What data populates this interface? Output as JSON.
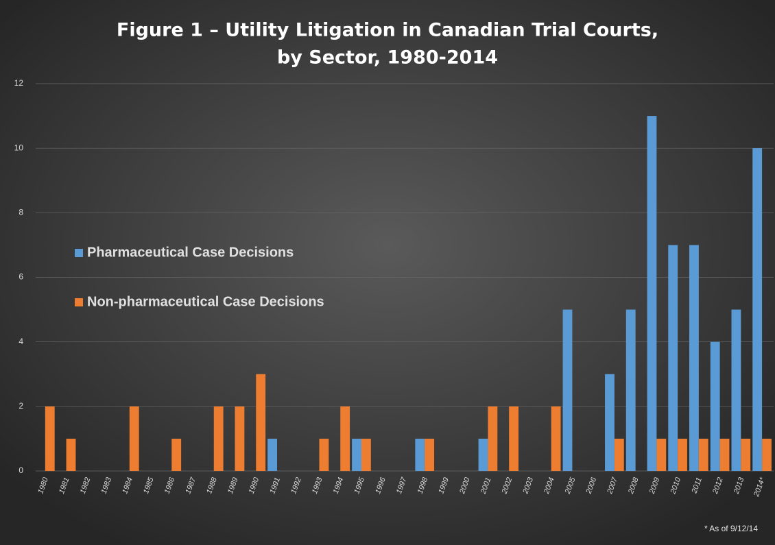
{
  "chart_data": {
    "type": "bar",
    "title": [
      "Figure 1 – Utility Litigation in Canadian Trial Courts,",
      "by Sector, 1980-2014"
    ],
    "categories": [
      "1980",
      "1981",
      "1982",
      "1983",
      "1984",
      "1985",
      "1986",
      "1987",
      "1988",
      "1989",
      "1990",
      "1991",
      "1992",
      "1993",
      "1994",
      "1995",
      "1996",
      "1997",
      "1998",
      "1999",
      "2000",
      "2001",
      "2002",
      "2003",
      "2004",
      "2005",
      "2006",
      "2007",
      "2008",
      "2009",
      "2010",
      "2011",
      "2012",
      "2013",
      "2014*"
    ],
    "series": [
      {
        "name": "Pharmaceutical Case Decisions",
        "color": "#5b9bd5",
        "values": [
          0,
          0,
          0,
          0,
          0,
          0,
          0,
          0,
          0,
          0,
          0,
          1,
          0,
          0,
          0,
          1,
          0,
          0,
          1,
          0,
          0,
          1,
          0,
          0,
          0,
          5,
          0,
          3,
          5,
          11,
          7,
          7,
          4,
          5,
          10
        ]
      },
      {
        "name": "Non-pharmaceutical Case Decisions",
        "color": "#ed7d31",
        "values": [
          2,
          1,
          0,
          0,
          2,
          0,
          1,
          0,
          2,
          2,
          3,
          0,
          0,
          1,
          2,
          1,
          0,
          0,
          1,
          0,
          0,
          2,
          2,
          0,
          2,
          0,
          0,
          1,
          0,
          1,
          1,
          1,
          1,
          1,
          1
        ]
      }
    ],
    "ylim": [
      0,
      12
    ],
    "yticks": [
      0,
      2,
      4,
      6,
      8,
      10,
      12
    ],
    "grid": true,
    "legend": "left",
    "annotation": "* As of 9/12/14"
  }
}
